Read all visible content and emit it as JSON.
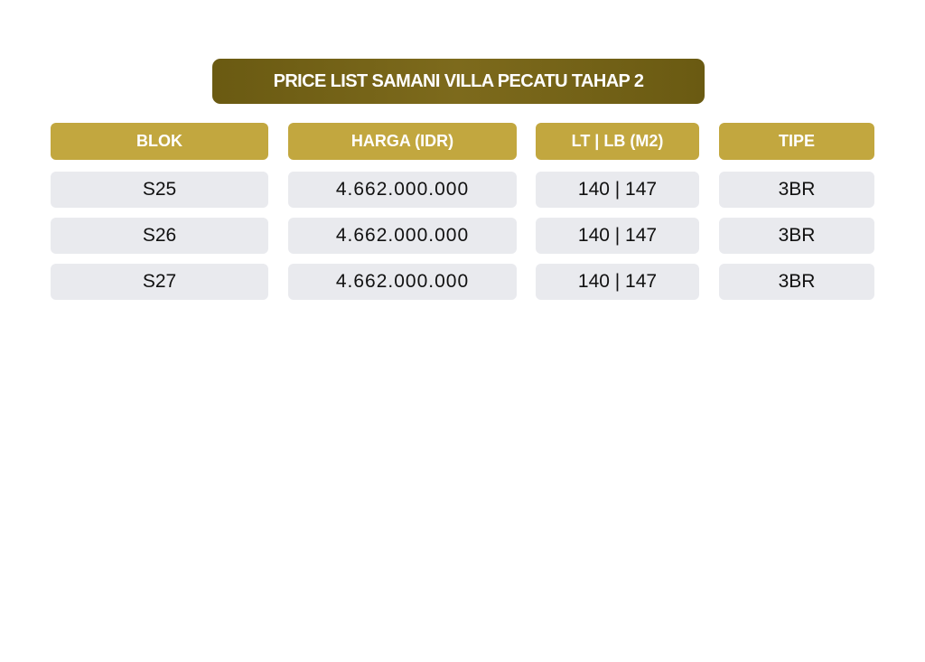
{
  "title": "PRICE LIST SAMANI VILLA PECATU TAHAP 2",
  "colors": {
    "title_bg": "#75641a",
    "header_bg": "#c2a73f",
    "cell_bg": "#e9eaee"
  },
  "table": {
    "headers": [
      "BLOK",
      "HARGA (IDR)",
      "LT | LB (M2)",
      "TIPE"
    ],
    "rows": [
      [
        "S25",
        "4.662.000.000",
        "140 | 147",
        "3BR"
      ],
      [
        "S26",
        "4.662.000.000",
        "140 | 147",
        "3BR"
      ],
      [
        "S27",
        "4.662.000.000",
        "140 | 147",
        "3BR"
      ]
    ]
  }
}
